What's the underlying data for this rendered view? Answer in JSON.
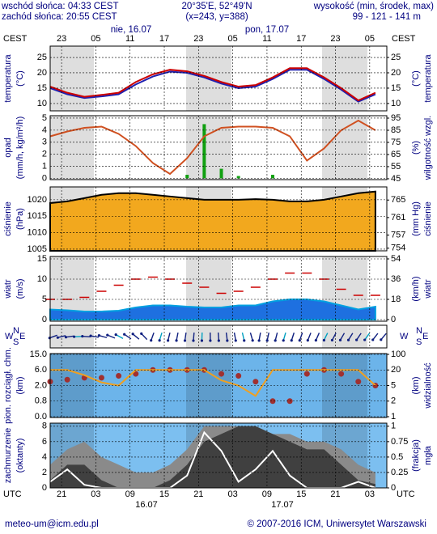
{
  "header": {
    "sunrise": "wschód słońca: 04:33 CEST",
    "sunset": "zachód słońca: 20:55 CEST",
    "coords": "20°35'E, 52°49'N",
    "grid": "(x=243, y=388)",
    "height_title": "wysokość (min, środek, max)",
    "height_values": "99 - 121 - 141 m"
  },
  "footer": {
    "email": "meteo-um@icm.edu.pl",
    "copyright": "© 2007-2016 ICM, Uniwersytet Warszawski"
  },
  "time_axis": {
    "cest_label": "CEST",
    "utc_label": "UTC",
    "xlim": [
      0,
      59
    ],
    "cest_ticks": [
      {
        "value": 2,
        "label": "23"
      },
      {
        "value": 8,
        "label": "05"
      },
      {
        "value": 14,
        "label": "11"
      },
      {
        "value": 20,
        "label": "17"
      },
      {
        "value": 26,
        "label": "23"
      },
      {
        "value": 32,
        "label": "05"
      },
      {
        "value": 38,
        "label": "11"
      },
      {
        "value": 44,
        "label": "17"
      },
      {
        "value": 50,
        "label": "23"
      },
      {
        "value": 56,
        "label": "05"
      }
    ],
    "utc_ticks": [
      {
        "value": 2,
        "label": "21"
      },
      {
        "value": 8,
        "label": "03"
      },
      {
        "value": 14,
        "label": "09"
      },
      {
        "value": 20,
        "label": "15"
      },
      {
        "value": 26,
        "label": "21"
      },
      {
        "value": 32,
        "label": "03"
      },
      {
        "value": 38,
        "label": "09"
      },
      {
        "value": 44,
        "label": "15"
      },
      {
        "value": 50,
        "label": "21"
      },
      {
        "value": 56,
        "label": "03"
      }
    ],
    "dates_top": [
      "nie, 16.07",
      "pon, 17.07"
    ],
    "dates_bottom": [
      "16.07",
      "17.07"
    ]
  },
  "wind_direction": {
    "compass": [
      "W",
      "N",
      "S",
      "E"
    ]
  },
  "chart_data": [
    {
      "type": "line",
      "ylabel": [
        "temperatura",
        "(°C)"
      ],
      "y2label": [
        "(°C)",
        "temperatura"
      ],
      "background": "#ffffff",
      "x": [
        0,
        3,
        6,
        9,
        12,
        15,
        18,
        21,
        24,
        27,
        30,
        33,
        36,
        39,
        42,
        45,
        48,
        51,
        54,
        57
      ],
      "ylim": [
        7.6,
        28.7
      ],
      "yticks": [
        10,
        15,
        20,
        25
      ],
      "y2lim": [
        7.6,
        28.7
      ],
      "y2ticks": [
        10,
        15,
        20,
        25
      ],
      "series": [
        {
          "type": "line",
          "color": "#2020b0",
          "values": [
            15,
            13,
            11.8,
            12.3,
            13,
            16.2,
            18.8,
            20.4,
            20,
            18.5,
            16.5,
            15,
            15.5,
            18,
            21,
            21,
            18,
            14.5,
            10.6,
            13
          ]
        },
        {
          "type": "line",
          "color": "#cc0000",
          "values": [
            15.5,
            13.5,
            12.2,
            12.8,
            13.5,
            17,
            19.5,
            21,
            20.5,
            19,
            17,
            15.5,
            16,
            18.5,
            21.5,
            21.5,
            18.5,
            15,
            11,
            13.5
          ]
        }
      ]
    },
    {
      "type": "line",
      "ylabel": [
        "opad",
        "(mm/h, kg/m²/h)"
      ],
      "y2label": [
        "(%)",
        "wilgotność wzgl."
      ],
      "background": "#ffffff",
      "x": [
        0,
        3,
        6,
        9,
        12,
        15,
        18,
        21,
        24,
        27,
        30,
        33,
        36,
        39,
        42,
        45,
        48,
        51,
        54,
        57
      ],
      "ylim": [
        -0.1,
        5.2
      ],
      "yticks": [
        0,
        1,
        2,
        3,
        4,
        5
      ],
      "y2lim": [
        44.3,
        97
      ],
      "y2ticks": [
        45,
        55,
        65,
        75,
        85,
        95
      ],
      "series": [
        {
          "type": "bar",
          "color": "#10a010",
          "values": [
            0,
            0,
            0,
            0,
            0,
            0,
            0,
            0,
            0.3,
            4.5,
            0.8,
            0.2,
            0,
            0.3,
            0,
            0,
            0,
            0,
            0,
            0
          ]
        },
        {
          "type": "line",
          "axis": "y2",
          "color": "#d05020",
          "values": [
            80,
            84,
            87,
            88,
            82,
            72,
            58,
            49,
            62,
            80,
            87,
            88,
            88,
            87,
            80,
            60,
            70,
            85,
            93,
            85
          ]
        }
      ]
    },
    {
      "type": "area",
      "ylabel": [
        "ciśnienie",
        "(hPa)"
      ],
      "y2label": [
        "(mm Hg)",
        "ciśnienie"
      ],
      "background": "#ffffff",
      "x": [
        0,
        3,
        6,
        9,
        12,
        15,
        18,
        21,
        24,
        27,
        30,
        33,
        36,
        39,
        42,
        45,
        48,
        51,
        54,
        57
      ],
      "ylim": [
        1004.5,
        1023.9
      ],
      "yticks": [
        1005,
        1010,
        1015,
        1020
      ],
      "y2lim": [
        753.4,
        768
      ],
      "y2ticks": [
        754,
        757,
        761,
        765
      ],
      "series": [
        {
          "type": "area",
          "color": "#f2a81e",
          "outline": "#000000",
          "values": [
            1019,
            1019.5,
            1020.5,
            1021.5,
            1022,
            1022,
            1021.5,
            1021,
            1020.5,
            1020,
            1020,
            1020,
            1020.2,
            1020,
            1019.5,
            1019.5,
            1020,
            1021,
            1022,
            1022.5
          ]
        }
      ]
    },
    {
      "type": "area",
      "ylabel": [
        "wiatr",
        "(m/s)"
      ],
      "y2label": [
        "(km/h)",
        "wiatr"
      ],
      "background": "#ffffff",
      "x": [
        0,
        3,
        6,
        9,
        12,
        15,
        18,
        21,
        24,
        27,
        30,
        33,
        36,
        39,
        42,
        45,
        48,
        51,
        54,
        57
      ],
      "ylim": [
        -0.4,
        15.6
      ],
      "yticks": [
        0,
        5,
        10,
        15
      ],
      "y2lim": [
        -1.44,
        56.16
      ],
      "y2ticks": [
        0,
        18,
        36,
        54
      ],
      "series": [
        {
          "type": "area",
          "color": "#1e70e0",
          "outline": "#00a0e0",
          "values": [
            2.5,
            2.3,
            2,
            2,
            2.2,
            3,
            3.5,
            3.5,
            3.2,
            3,
            3,
            3.5,
            3.5,
            4.5,
            5,
            5,
            4.5,
            3.5,
            2.5,
            3.2
          ]
        },
        {
          "type": "dash",
          "color": "#cc0000",
          "values": [
            5,
            5,
            5.5,
            7,
            8.5,
            10,
            10.5,
            10,
            9,
            8,
            6.5,
            7,
            8,
            10,
            11.5,
            11.5,
            10,
            7.5,
            6,
            6
          ]
        }
      ]
    },
    {
      "type": "line",
      "ylabel": [
        "pion. rozciągł. chm.",
        "(km)"
      ],
      "y2label": [
        "(km)",
        "widzialność"
      ],
      "background": "#6cb4ea",
      "yscale": "piecewise",
      "y2scale": "piecewise",
      "x": [
        0,
        3,
        6,
        9,
        12,
        15,
        18,
        21,
        24,
        27,
        30,
        33,
        36,
        39,
        42,
        45,
        48,
        51,
        54,
        57
      ],
      "ylim": [
        0,
        15
      ],
      "yticks": [
        {
          "value": 0,
          "label": "0.0"
        },
        {
          "value": 0.8,
          "label": "0.8"
        },
        {
          "value": 2,
          "label": "2.0"
        },
        {
          "value": 6,
          "label": "6.0"
        },
        {
          "value": 15,
          "label": "15.0"
        }
      ],
      "y2lim": [
        1,
        100
      ],
      "y2ticks": [
        1,
        2,
        5,
        20,
        100
      ],
      "series": [
        {
          "type": "dots",
          "color": "#a03030",
          "values": [
            3,
            3.5,
            4,
            4,
            4.5,
            5,
            6,
            6,
            6,
            6,
            5,
            4.5,
            3,
            0.8,
            0.8,
            5,
            6,
            5,
            3,
            2
          ]
        },
        {
          "type": "line",
          "axis": "y2",
          "color": "#f0a020",
          "values": [
            20,
            20,
            15,
            8,
            5,
            20,
            20,
            20,
            20,
            20,
            10,
            5,
            3,
            20,
            20,
            20,
            20,
            20,
            20,
            5
          ]
        }
      ]
    },
    {
      "type": "area",
      "ylabel": [
        "zachmurzenie",
        "(oktanty)"
      ],
      "y2label": [
        "(frakcja)",
        "mgła"
      ],
      "background": "#7cbff0",
      "x": [
        0,
        3,
        6,
        9,
        12,
        15,
        18,
        21,
        24,
        27,
        30,
        33,
        36,
        39,
        42,
        45,
        48,
        51,
        54,
        57
      ],
      "ylim": [
        0,
        8.4
      ],
      "yticks": [
        0,
        2,
        4,
        6,
        8
      ],
      "y2lim": [
        0,
        1.05
      ],
      "y2ticks": [
        0,
        0.25,
        0.5,
        0.75,
        1
      ],
      "series": [
        {
          "type": "area",
          "color": "#8a8a8a",
          "values": [
            3,
            5,
            6,
            4,
            3,
            2,
            2,
            3,
            5,
            8,
            8,
            8,
            8,
            7,
            7,
            6,
            6,
            5,
            3,
            2
          ]
        },
        {
          "type": "area",
          "color": "#404040",
          "values": [
            1,
            3,
            3,
            1,
            0,
            0,
            0,
            1,
            3,
            6,
            7,
            8,
            8,
            7,
            6,
            5,
            5,
            3,
            1,
            0.5
          ]
        },
        {
          "type": "line",
          "axis": "y2",
          "color": "#ffffff",
          "values": [
            0.1,
            0.3,
            0.05,
            0,
            0,
            0,
            0,
            0,
            0.2,
            0.9,
            0.6,
            0.1,
            0.3,
            0.6,
            0.2,
            0,
            0,
            0,
            0.1,
            0
          ]
        }
      ]
    }
  ]
}
